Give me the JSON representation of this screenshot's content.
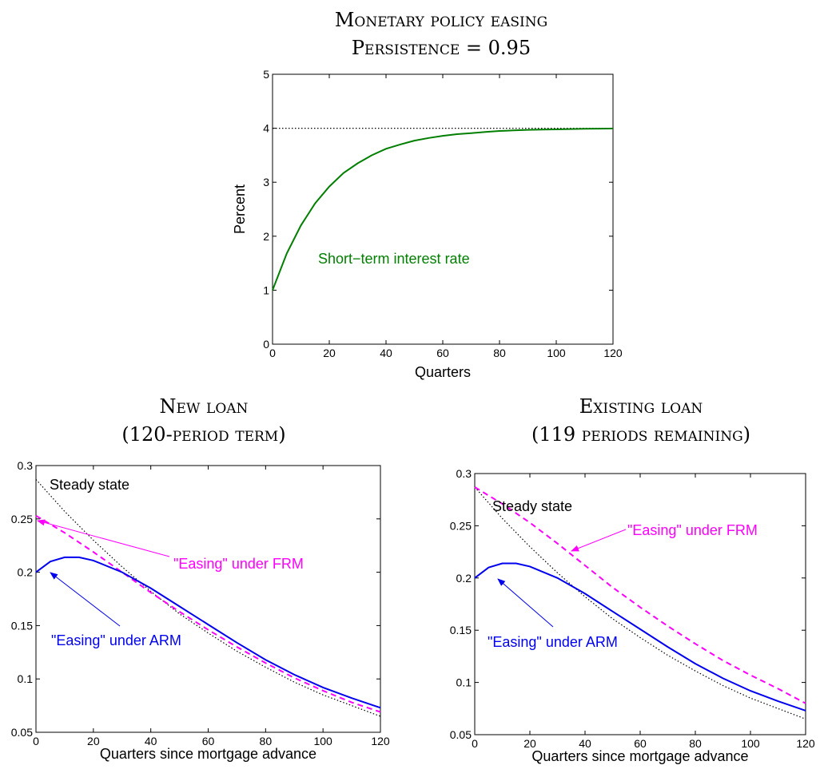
{
  "figure": {
    "top_title_line1": "Monetary policy easing",
    "top_title_line2": "Persistence = 0.95",
    "left_title_line1": "New loan",
    "left_title_line2": "(120-period term)",
    "right_title_line1": "Existing loan",
    "right_title_line2": "(119 periods remaining)"
  },
  "colors": {
    "green": "#007f00",
    "blue": "#0000ee",
    "magenta": "#ff00ff",
    "black": "#000000"
  },
  "chart_data": [
    {
      "type": "line",
      "panel": "top",
      "xlabel": "Quarters",
      "ylabel": "Percent",
      "xlim": [
        0,
        120
      ],
      "ylim": [
        0,
        5
      ],
      "xticks": [
        0,
        20,
        40,
        60,
        80,
        100,
        120
      ],
      "yticks": [
        0,
        1,
        2,
        3,
        4,
        5
      ],
      "grid": false,
      "annotations": [
        {
          "text": "Short−term interest rate",
          "color": "#007f00"
        }
      ],
      "series": [
        {
          "style": "dotted",
          "color": "#000000",
          "x": [
            0,
            120
          ],
          "y": [
            4,
            4
          ]
        },
        {
          "style": "solid",
          "color": "#007f00",
          "x": [
            0,
            5,
            10,
            15,
            20,
            25,
            30,
            35,
            40,
            45,
            50,
            55,
            60,
            65,
            70,
            75,
            80,
            85,
            90,
            95,
            100,
            105,
            110,
            115,
            120
          ],
          "y": [
            1.0,
            1.68,
            2.2,
            2.61,
            2.92,
            3.17,
            3.35,
            3.5,
            3.62,
            3.7,
            3.77,
            3.82,
            3.86,
            3.89,
            3.91,
            3.93,
            3.95,
            3.96,
            3.97,
            3.975,
            3.98,
            3.985,
            3.99,
            3.992,
            3.995
          ]
        }
      ]
    },
    {
      "type": "line",
      "panel": "bottom-left",
      "xlabel": "Quarters since mortgage advance",
      "ylabel": "",
      "xlim": [
        0,
        120
      ],
      "ylim": [
        0.05,
        0.3
      ],
      "xticks": [
        0,
        20,
        40,
        60,
        80,
        100,
        120
      ],
      "yticks": [
        0.05,
        0.1,
        0.15,
        0.2,
        0.25,
        0.3
      ],
      "grid": false,
      "annotations": [
        {
          "text": "Steady state",
          "color": "#000000"
        },
        {
          "text": "\"Easing\" under FRM",
          "color": "#ff00ff"
        },
        {
          "text": "\"Easing\" under ARM",
          "color": "#0000ee"
        }
      ],
      "series": [
        {
          "style": "dotted",
          "color": "#000000",
          "x": [
            0,
            10,
            20,
            30,
            40,
            50,
            60,
            70,
            80,
            90,
            100,
            110,
            120
          ],
          "y": [
            0.287,
            0.257,
            0.23,
            0.205,
            0.182,
            0.161,
            0.143,
            0.126,
            0.111,
            0.097,
            0.085,
            0.075,
            0.065
          ]
        },
        {
          "style": "dashed",
          "color": "#ff00ff",
          "x": [
            0,
            10,
            20,
            30,
            40,
            50,
            60,
            70,
            80,
            90,
            100,
            110,
            120
          ],
          "y": [
            0.253,
            0.237,
            0.219,
            0.2,
            0.181,
            0.163,
            0.146,
            0.13,
            0.115,
            0.101,
            0.089,
            0.078,
            0.069
          ]
        },
        {
          "style": "solid",
          "color": "#0000ee",
          "x": [
            0,
            5,
            10,
            15,
            20,
            30,
            40,
            50,
            60,
            70,
            80,
            90,
            100,
            110,
            120
          ],
          "y": [
            0.2,
            0.21,
            0.214,
            0.214,
            0.211,
            0.2,
            0.185,
            0.168,
            0.151,
            0.134,
            0.118,
            0.104,
            0.092,
            0.082,
            0.073
          ]
        }
      ]
    },
    {
      "type": "line",
      "panel": "bottom-right",
      "xlabel": "Quarters since mortgage advance",
      "ylabel": "",
      "xlim": [
        0,
        120
      ],
      "ylim": [
        0.05,
        0.3
      ],
      "xticks": [
        0,
        20,
        40,
        60,
        80,
        100,
        120
      ],
      "yticks": [
        0.05,
        0.1,
        0.15,
        0.2,
        0.25,
        0.3
      ],
      "grid": false,
      "annotations": [
        {
          "text": "Steady state",
          "color": "#000000"
        },
        {
          "text": "\"Easing\" under FRM",
          "color": "#ff00ff"
        },
        {
          "text": "\"Easing\" under ARM",
          "color": "#0000ee"
        }
      ],
      "series": [
        {
          "style": "dotted",
          "color": "#000000",
          "x": [
            0,
            10,
            20,
            30,
            40,
            50,
            60,
            70,
            80,
            90,
            100,
            110,
            120
          ],
          "y": [
            0.287,
            0.257,
            0.23,
            0.205,
            0.182,
            0.161,
            0.143,
            0.126,
            0.111,
            0.097,
            0.085,
            0.075,
            0.065
          ]
        },
        {
          "style": "dashed",
          "color": "#ff00ff",
          "x": [
            0,
            10,
            20,
            30,
            40,
            50,
            60,
            70,
            80,
            90,
            100,
            110,
            120
          ],
          "y": [
            0.287,
            0.271,
            0.253,
            0.233,
            0.212,
            0.191,
            0.172,
            0.154,
            0.137,
            0.121,
            0.107,
            0.094,
            0.08
          ]
        },
        {
          "style": "solid",
          "color": "#0000ee",
          "x": [
            0,
            5,
            10,
            15,
            20,
            30,
            40,
            50,
            60,
            70,
            80,
            90,
            100,
            110,
            120
          ],
          "y": [
            0.2,
            0.21,
            0.214,
            0.214,
            0.211,
            0.2,
            0.185,
            0.168,
            0.151,
            0.134,
            0.118,
            0.104,
            0.092,
            0.082,
            0.073
          ]
        }
      ]
    }
  ]
}
